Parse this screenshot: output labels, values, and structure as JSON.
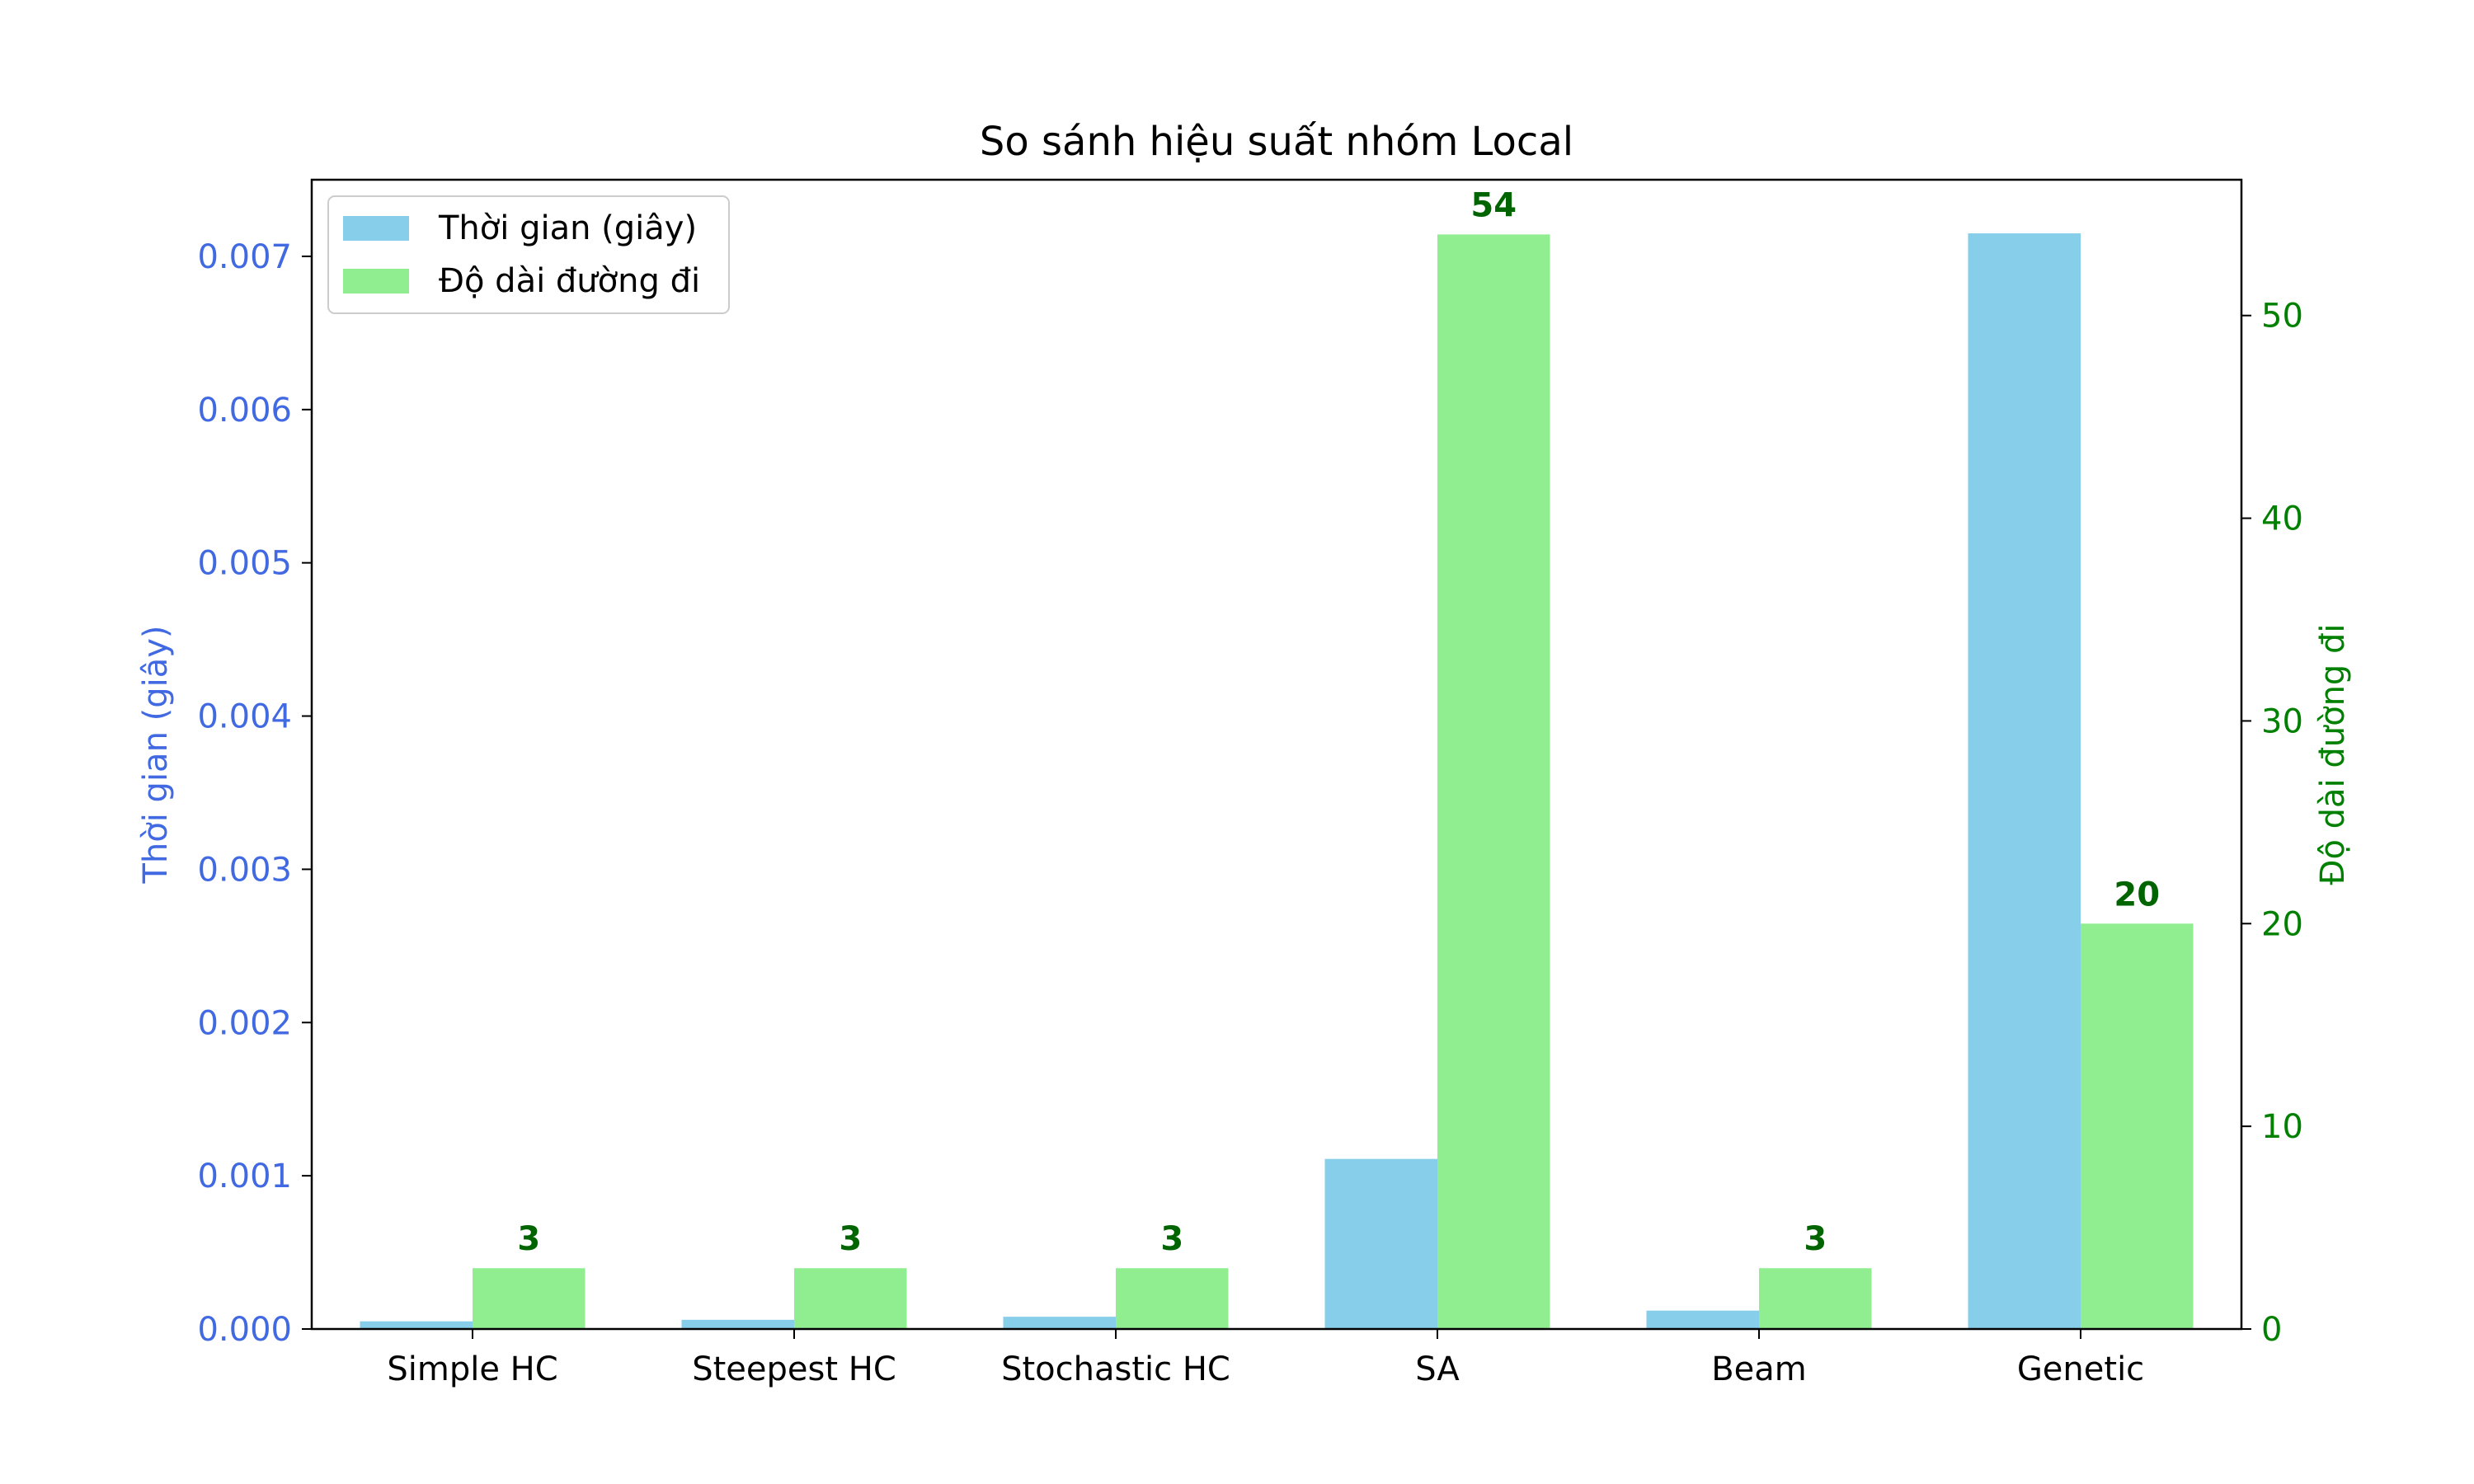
{
  "chart_data": {
    "type": "bar",
    "title": "So sánh hiệu suất nhóm Local",
    "categories": [
      "Simple HC",
      "Steepest HC",
      "Stochastic HC",
      "SA",
      "Beam",
      "Genetic"
    ],
    "series": [
      {
        "name": "Thời gian (giây)",
        "axis": "left",
        "color": "#87CEEB",
        "values": [
          5e-05,
          6e-05,
          8e-05,
          0.00111,
          0.00012,
          0.00715
        ]
      },
      {
        "name": "Độ dài đường đi",
        "axis": "right",
        "color": "#90EE90",
        "values": [
          3,
          3,
          3,
          54,
          3,
          20
        ],
        "data_labels": [
          "3",
          "3",
          "3",
          "54",
          "3",
          "20"
        ]
      }
    ],
    "y_left": {
      "label": "Thời gian (giây)",
      "range": [
        0,
        0.0075
      ],
      "ticks": [
        "0.000",
        "0.001",
        "0.002",
        "0.003",
        "0.004",
        "0.005",
        "0.006",
        "0.007"
      ],
      "color": "#4169E1"
    },
    "y_right": {
      "label": "Độ dài đường đi",
      "range": [
        0,
        56.7
      ],
      "ticks": [
        "0",
        "10",
        "20",
        "30",
        "40",
        "50"
      ],
      "color": "#008000"
    },
    "data_label_color": "#006400",
    "legend": "top-left",
    "grid": false
  }
}
